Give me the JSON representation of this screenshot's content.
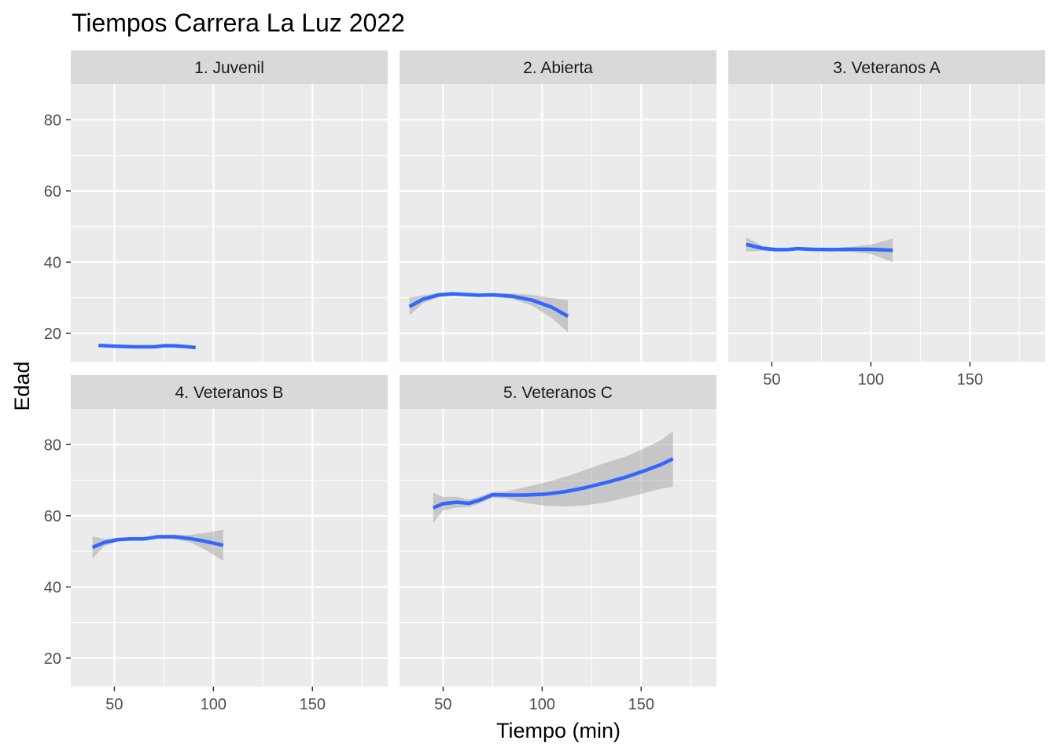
{
  "chart_data": {
    "type": "line",
    "title": "Tiempos Carrera La Luz  2022",
    "xlabel": "Tiempo (min)",
    "ylabel": "Edad",
    "xlim": [
      28,
      188
    ],
    "ylim": [
      12,
      90
    ],
    "x_ticks": [
      50,
      100,
      150
    ],
    "y_ticks": [
      20,
      40,
      60,
      80
    ],
    "grid": true,
    "colors": {
      "line": "#3366FF",
      "ribbon": "#999999",
      "panel_bg": "#EBEBEB",
      "strip_bg": "#D9D9D9",
      "grid": "#FFFFFF"
    },
    "panels": [
      {
        "label": "1. Juvenil",
        "x": [
          42,
          50,
          60,
          70,
          75,
          80,
          85,
          91
        ],
        "y": [
          16.6,
          16.4,
          16.2,
          16.2,
          16.5,
          16.5,
          16.3,
          16.0
        ],
        "lower": [
          16.3,
          16.1,
          15.9,
          15.9,
          16.2,
          16.2,
          15.9,
          15.5
        ],
        "upper": [
          16.9,
          16.7,
          16.5,
          16.5,
          16.8,
          16.8,
          16.7,
          16.5
        ]
      },
      {
        "label": "2. Abierta",
        "x": [
          33,
          40,
          48,
          55,
          62,
          68,
          75,
          85,
          95,
          105,
          113
        ],
        "y": [
          27.5,
          29.6,
          30.8,
          31.1,
          30.9,
          30.7,
          30.8,
          30.4,
          29.3,
          27.3,
          24.8
        ],
        "lower": [
          25.0,
          28.5,
          30.2,
          30.6,
          30.4,
          30.3,
          30.3,
          29.6,
          27.8,
          24.2,
          20.3
        ],
        "upper": [
          30.0,
          30.7,
          31.4,
          31.6,
          31.4,
          31.1,
          31.3,
          31.2,
          30.8,
          29.9,
          29.4
        ]
      },
      {
        "label": "3. Veteranos A",
        "x": [
          37,
          45,
          52,
          58,
          63,
          70,
          80,
          90,
          100,
          111
        ],
        "y": [
          45.0,
          43.9,
          43.5,
          43.5,
          43.8,
          43.6,
          43.5,
          43.6,
          43.6,
          43.3
        ],
        "lower": [
          43.0,
          43.2,
          43.0,
          43.1,
          43.4,
          43.2,
          43.1,
          42.9,
          42.3,
          40.0
        ],
        "upper": [
          47.0,
          44.6,
          44.0,
          43.9,
          44.2,
          44.0,
          43.9,
          44.3,
          44.9,
          46.6
        ]
      },
      {
        "label": "4. Veteranos B",
        "x": [
          39,
          45,
          52,
          58,
          65,
          72,
          80,
          88,
          96,
          105
        ],
        "y": [
          51.1,
          52.5,
          53.3,
          53.5,
          53.5,
          54.1,
          54.1,
          53.6,
          52.8,
          51.7
        ],
        "lower": [
          48.0,
          51.5,
          52.8,
          53.0,
          53.0,
          53.6,
          53.5,
          52.6,
          50.4,
          47.3
        ],
        "upper": [
          54.2,
          53.5,
          53.8,
          54.0,
          54.0,
          54.6,
          54.7,
          54.6,
          55.2,
          56.1
        ]
      },
      {
        "label": "5. Veteranos C",
        "x": [
          45,
          50,
          57,
          63,
          68,
          75,
          82,
          92,
          102,
          112,
          122,
          132,
          142,
          152,
          160,
          166
        ],
        "y": [
          62.2,
          63.4,
          63.8,
          63.5,
          64.3,
          65.9,
          65.8,
          65.8,
          66.1,
          66.8,
          67.9,
          69.3,
          70.8,
          72.7,
          74.4,
          76.0
        ],
        "lower": [
          58.0,
          61.5,
          62.3,
          62.4,
          63.3,
          65.1,
          64.8,
          63.5,
          62.8,
          62.6,
          62.9,
          63.7,
          65.0,
          66.4,
          67.6,
          68.2
        ],
        "upper": [
          66.4,
          65.3,
          65.3,
          64.6,
          65.3,
          66.7,
          66.8,
          68.1,
          69.4,
          71.0,
          72.9,
          74.9,
          76.6,
          79.0,
          81.2,
          83.8
        ]
      }
    ]
  }
}
